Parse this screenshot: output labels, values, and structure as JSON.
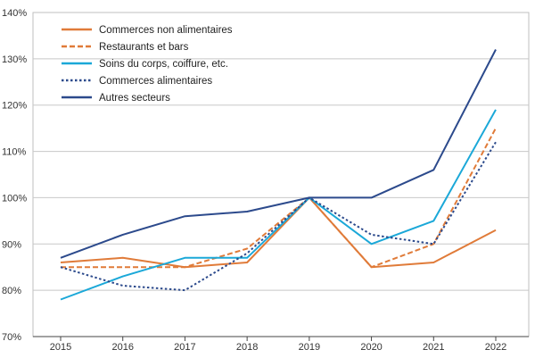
{
  "chart_data": {
    "type": "line",
    "categories": [
      "2015",
      "2016",
      "2017",
      "2018",
      "2019",
      "2020",
      "2021",
      "2022"
    ],
    "y_ticks": [
      "70%",
      "80%",
      "90%",
      "100%",
      "110%",
      "120%",
      "130%",
      "140%"
    ],
    "ylim": [
      70,
      140
    ],
    "grid": "horizontal",
    "legend_position": "top-left",
    "series": [
      {
        "name": "Commerces non alimentaires",
        "color": "#e07b39",
        "dash": "solid",
        "values": [
          86,
          87,
          85,
          86,
          100,
          85,
          86,
          93
        ]
      },
      {
        "name": "Restaurants et bars",
        "color": "#e07b39",
        "dash": "dashed",
        "values": [
          85,
          85,
          85,
          89,
          100,
          85,
          90,
          115
        ]
      },
      {
        "name": "Soins du corps, coiffure, etc.",
        "color": "#1ba8d8",
        "dash": "solid",
        "values": [
          78,
          83,
          87,
          87,
          100,
          90,
          95,
          119
        ]
      },
      {
        "name": "Commerces alimentaires",
        "color": "#2c4a8c",
        "dash": "dotted",
        "values": [
          85,
          81,
          80,
          88,
          100,
          92,
          90,
          112
        ]
      },
      {
        "name": "Autres secteurs",
        "color": "#2c4a8c",
        "dash": "solid",
        "values": [
          87,
          92,
          96,
          97,
          100,
          100,
          106,
          132
        ]
      }
    ]
  }
}
